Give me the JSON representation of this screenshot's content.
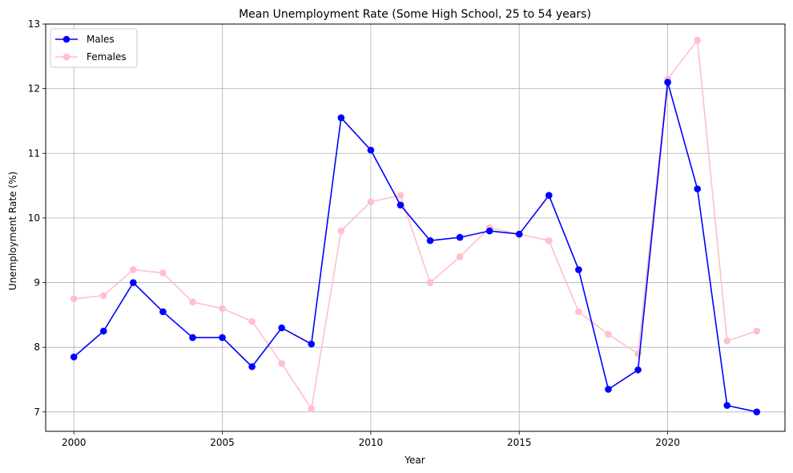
{
  "chart_data": {
    "type": "line",
    "title": "Mean Unemployment Rate (Some High School, 25 to 54 years)",
    "xlabel": "Year",
    "ylabel": "Unemployment Rate (%)",
    "x": [
      2000,
      2001,
      2002,
      2003,
      2004,
      2005,
      2006,
      2007,
      2008,
      2009,
      2010,
      2011,
      2012,
      2013,
      2014,
      2015,
      2016,
      2017,
      2018,
      2019,
      2020,
      2021,
      2022,
      2023
    ],
    "xlim": [
      1999.05,
      2023.95
    ],
    "ylim": [
      6.7,
      13.0
    ],
    "xticks": [
      2000,
      2005,
      2010,
      2015,
      2020
    ],
    "yticks": [
      7,
      8,
      9,
      10,
      11,
      12,
      13
    ],
    "grid": true,
    "legend_position": "top-left",
    "series": [
      {
        "name": "Males",
        "color": "#0000ff",
        "values": [
          7.85,
          8.25,
          9.0,
          8.55,
          8.15,
          8.15,
          7.7,
          8.3,
          8.05,
          11.55,
          11.05,
          10.2,
          9.65,
          9.7,
          9.8,
          9.75,
          10.35,
          9.2,
          7.35,
          7.65,
          12.1,
          10.45,
          7.1,
          7.0
        ]
      },
      {
        "name": "Females",
        "color": "#ffc0cb",
        "values": [
          8.75,
          8.8,
          9.2,
          9.15,
          8.7,
          8.6,
          8.4,
          7.75,
          7.05,
          9.8,
          10.25,
          10.35,
          9.0,
          9.4,
          9.85,
          9.75,
          9.65,
          8.55,
          8.2,
          7.9,
          12.15,
          12.75,
          8.1,
          8.25
        ]
      }
    ]
  }
}
